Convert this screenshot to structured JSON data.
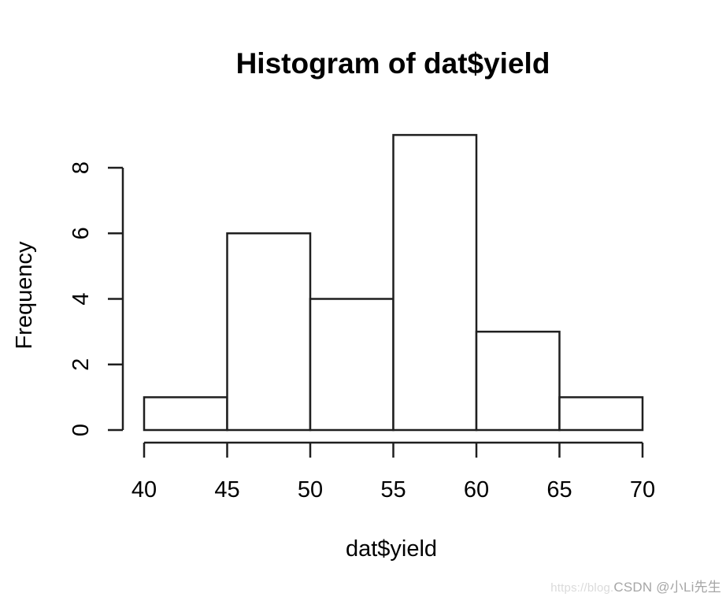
{
  "chart_data": {
    "type": "bar",
    "subtype": "histogram",
    "title": "Histogram of dat$yield",
    "xlabel": "dat$yield",
    "ylabel": "Frequency",
    "bin_edges": [
      40,
      45,
      50,
      55,
      60,
      65,
      70
    ],
    "counts": [
      1,
      6,
      4,
      9,
      3,
      1
    ],
    "x_ticks": [
      40,
      45,
      50,
      55,
      60,
      65,
      70
    ],
    "y_ticks": [
      0,
      2,
      4,
      6,
      8
    ],
    "xlim": [
      40,
      70
    ],
    "ylim": [
      0,
      9
    ],
    "grid": false,
    "legend": "none",
    "bar_fill": "#ffffff",
    "bar_stroke": "#1f1f1f",
    "axis_color": "#1f1f1f",
    "text_color": "#000000",
    "background_color": "#ffffff"
  },
  "watermark": {
    "url_text": "https://blog.",
    "handle_text": "CSDN @小Li先生",
    "url_color": "#dbdbdb",
    "handle_color": "#a6a6a6"
  }
}
